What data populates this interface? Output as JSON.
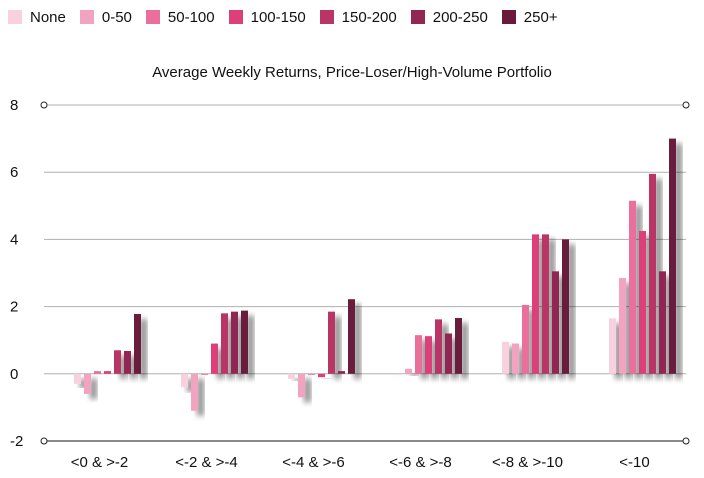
{
  "chart_data": {
    "type": "bar",
    "title": "Average Weekly Returns, Price-Loser/High-Volume Portfolio",
    "xlabel": "",
    "ylabel": "",
    "ylim": [
      -2,
      8
    ],
    "yticks": [
      "8",
      "6",
      "4",
      "2",
      "0",
      "-2"
    ],
    "categories": [
      "<0 & >-2",
      "<-2 & >-4",
      "<-4 & >-6",
      "<-6 & >-8",
      "<-8 & >-10",
      "<-10"
    ],
    "legend_position": "top",
    "grid": true,
    "series": [
      {
        "name": "None",
        "color": "#f9d0dd",
        "values": [
          -0.3,
          -0.4,
          -0.15,
          0.0,
          0.95,
          1.65
        ]
      },
      {
        "name": "0-50",
        "color": "#f2a3bf",
        "values": [
          -0.6,
          -1.1,
          -0.7,
          0.15,
          0.9,
          2.85
        ]
      },
      {
        "name": "50-100",
        "color": "#ea6f9b",
        "values": [
          0.08,
          0.0,
          0.0,
          1.15,
          2.05,
          5.15
        ]
      },
      {
        "name": "100-150",
        "color": "#dd3f78",
        "values": [
          0.08,
          0.9,
          -0.1,
          1.12,
          4.15,
          4.25
        ]
      },
      {
        "name": "150-200",
        "color": "#b83565",
        "values": [
          0.7,
          1.8,
          1.85,
          1.62,
          4.15,
          5.95
        ]
      },
      {
        "name": "200-250",
        "color": "#922752",
        "values": [
          0.68,
          1.85,
          0.08,
          1.2,
          3.05,
          3.05
        ]
      },
      {
        "name": "250+",
        "color": "#6b1a3c",
        "values": [
          1.78,
          1.88,
          2.22,
          1.66,
          4.0,
          7.0
        ]
      }
    ]
  }
}
